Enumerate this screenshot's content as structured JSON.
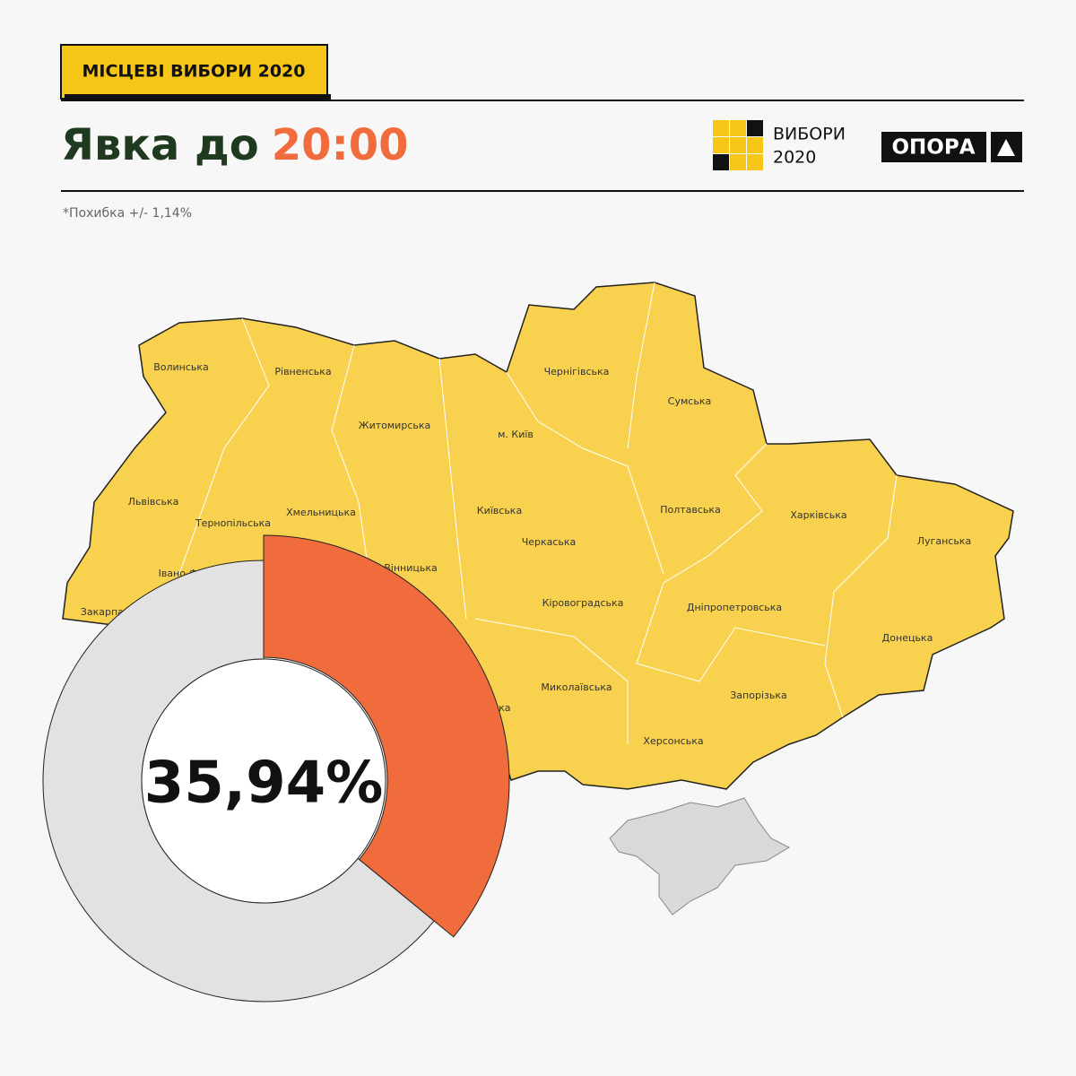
{
  "header": {
    "badge": "МІСЦЕВІ ВИБОРИ 2020",
    "title": "Явка до",
    "time": "20:00",
    "note": "*Похибка +/- 1,14%"
  },
  "logos": {
    "vybory": "ВИБОРИ",
    "year": "2020",
    "opora": "ОПОРА"
  },
  "map": {
    "regions": [
      "Волинська",
      "Рівненська",
      "Житомирська",
      "Чернігівська",
      "Сумська",
      "м. Київ",
      "Львівська",
      "Тернопільська",
      "Хмельницька",
      "Київська",
      "Полтавська",
      "Харківська",
      "Луганська",
      "Черкаська",
      "Вінницька",
      "Івано-Франківська",
      "Закарпатська",
      "Кіровоградська",
      "Дніпропетровська",
      "Донецька",
      "Миколаївська",
      "Одеська",
      "Запорізька",
      "Херсонська"
    ]
  },
  "chart_data": {
    "type": "donut",
    "value": 35.94,
    "value_label": "35,94%",
    "color": "#f06c3c",
    "rest_color": "#e2e2e2"
  }
}
